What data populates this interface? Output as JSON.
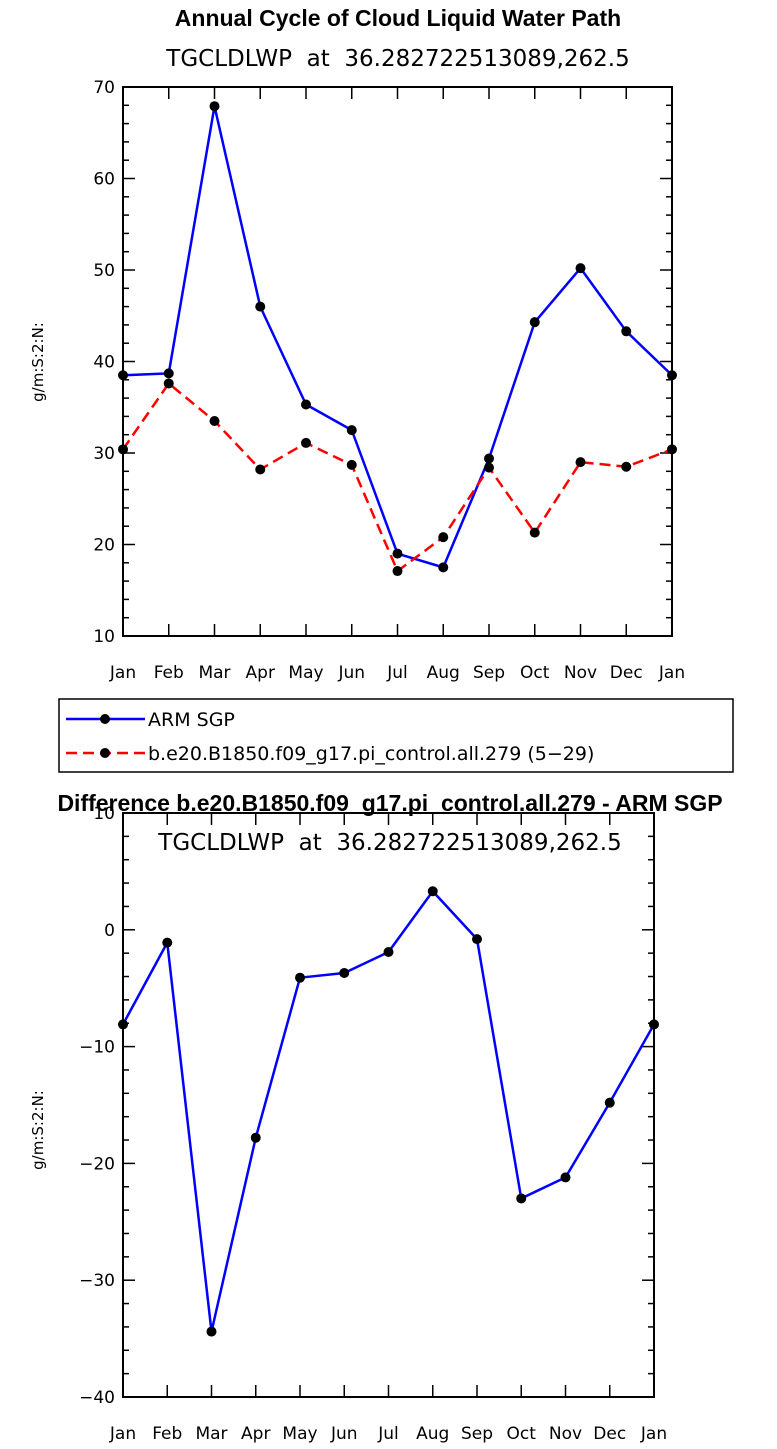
{
  "chart_data": [
    {
      "type": "line",
      "title": "Annual Cycle of Cloud Liquid Water Path",
      "subtitle": "TGCLDLWP  at  36.282722513089,262.5",
      "xlabel": "",
      "ylabel": "g/m:S:2:N:",
      "categories": [
        "Jan",
        "Feb",
        "Mar",
        "Apr",
        "May",
        "Jun",
        "Jul",
        "Aug",
        "Sep",
        "Oct",
        "Nov",
        "Dec",
        "Jan"
      ],
      "ylim": [
        10,
        70
      ],
      "yticks": [
        10,
        20,
        30,
        40,
        50,
        60,
        70
      ],
      "series": [
        {
          "name": "ARM SGP",
          "color": "#0000ff",
          "dash": "solid",
          "values": [
            38.5,
            38.7,
            67.9,
            46.0,
            35.3,
            32.5,
            19.0,
            17.5,
            29.4,
            44.3,
            50.2,
            43.3,
            38.5
          ]
        },
        {
          "name": "b.e20.B1850.f09_g17.pi_control.all.279 (5−29)",
          "color": "#ff0000",
          "dash": "dashed",
          "values": [
            30.4,
            37.6,
            33.5,
            28.2,
            31.1,
            28.7,
            17.1,
            20.8,
            28.4,
            21.3,
            29.0,
            28.5,
            30.4
          ]
        }
      ],
      "legend": "below-left"
    },
    {
      "type": "line",
      "title": "Difference b.e20.B1850.f09_g17.pi_control.all.279 - ARM SGP",
      "subtitle": "TGCLDLWP  at  36.282722513089,262.5",
      "xlabel": "",
      "ylabel": "g/m:S:2:N:",
      "categories": [
        "Jan",
        "Feb",
        "Mar",
        "Apr",
        "May",
        "Jun",
        "Jul",
        "Aug",
        "Sep",
        "Oct",
        "Nov",
        "Dec",
        "Jan"
      ],
      "ylim": [
        -40,
        10
      ],
      "yticks": [
        -40,
        -30,
        -20,
        -10,
        0,
        10
      ],
      "series": [
        {
          "name": "Difference",
          "color": "#0000ff",
          "dash": "solid",
          "values": [
            -8.1,
            -1.1,
            -34.4,
            -17.8,
            -4.1,
            -3.7,
            -1.9,
            3.3,
            -0.8,
            -23.0,
            -21.2,
            -14.8,
            -8.1
          ]
        }
      ]
    }
  ]
}
